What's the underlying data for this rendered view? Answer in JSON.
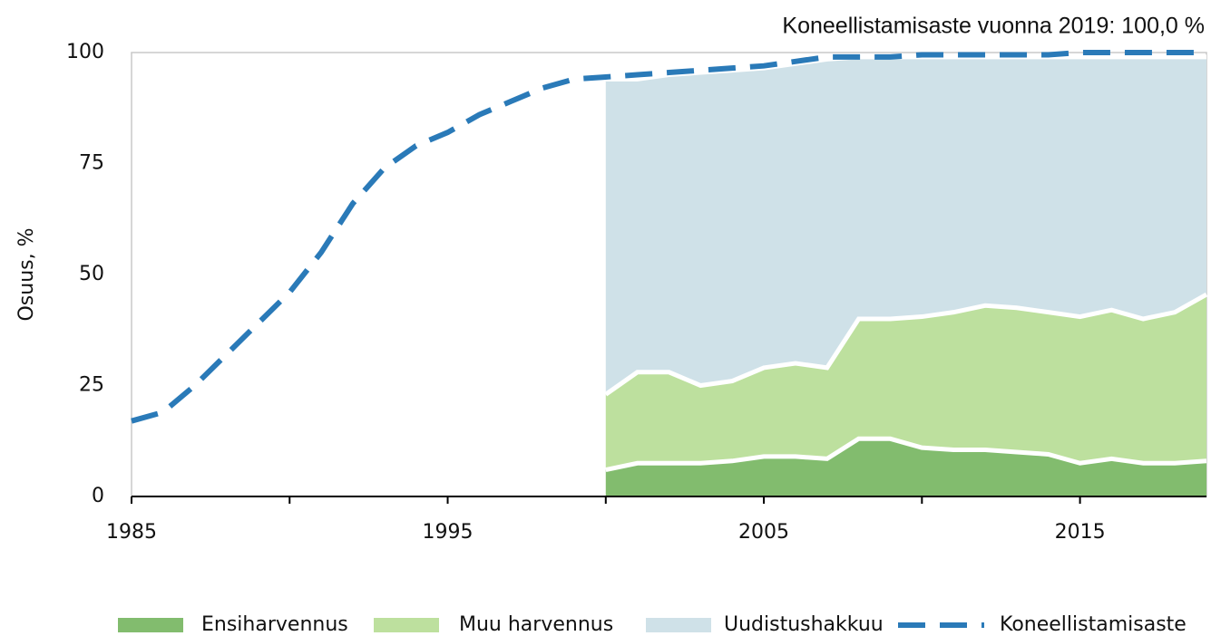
{
  "chart_data": {
    "type": "stacked-area-line",
    "title": "Koneellistamisaste vuonna 2019:  100,0 %",
    "y_label": "Osuus, %",
    "x": [
      1985,
      1986,
      1987,
      1988,
      1989,
      1990,
      1991,
      1992,
      1993,
      1994,
      1995,
      1996,
      1997,
      1998,
      1999,
      2000,
      2001,
      2002,
      2003,
      2004,
      2005,
      2006,
      2007,
      2008,
      2009,
      2010,
      2011,
      2012,
      2013,
      2014,
      2015,
      2016,
      2017,
      2018,
      2019
    ],
    "series": [
      {
        "name": "Ensiharvennus",
        "color": "#82bc6e",
        "kind": "area",
        "values": [
          null,
          null,
          null,
          null,
          null,
          null,
          null,
          null,
          null,
          null,
          null,
          null,
          null,
          null,
          null,
          6,
          7.5,
          7.5,
          7.5,
          8,
          9,
          9,
          8.5,
          13,
          13,
          11,
          10.5,
          10.5,
          10,
          9.5,
          7.5,
          8.5,
          7.5,
          7.5,
          8
        ]
      },
      {
        "name": "Muu harvennus",
        "color": "#bde09e",
        "kind": "area",
        "values": [
          null,
          null,
          null,
          null,
          null,
          null,
          null,
          null,
          null,
          null,
          null,
          null,
          null,
          null,
          null,
          17,
          20.5,
          20.5,
          17.5,
          18,
          20,
          21,
          20.5,
          27,
          27,
          29.5,
          31,
          32.5,
          32.5,
          32,
          33,
          33.5,
          32.5,
          34,
          37.5
        ]
      },
      {
        "name": "Uudistushakkuu",
        "color": "#cfe1e8",
        "kind": "area",
        "values": [
          null,
          null,
          null,
          null,
          null,
          null,
          null,
          null,
          null,
          null,
          null,
          null,
          null,
          null,
          null,
          71,
          66,
          67,
          70.5,
          70,
          67.5,
          67.5,
          69.5,
          59,
          59,
          58.5,
          57.5,
          56,
          56.5,
          57.5,
          58.5,
          57,
          59,
          57.5,
          53.5
        ]
      },
      {
        "name": "Koneellistamisaste",
        "color": "#2a7ab8",
        "kind": "line",
        "dashed": true,
        "values": [
          17,
          19,
          25,
          32,
          39,
          46,
          55,
          66,
          74,
          79,
          82,
          86,
          89,
          92,
          94,
          94.5,
          95,
          95.5,
          96,
          96.5,
          97,
          98,
          99,
          99,
          99,
          99.5,
          99.5,
          99.5,
          99.5,
          99.5,
          100,
          100,
          100,
          100,
          100
        ]
      }
    ],
    "xlim": [
      1985,
      2019
    ],
    "xticks": [
      1985,
      1995,
      2005,
      2015
    ],
    "xminorticks": [
      1990,
      2000,
      2010
    ],
    "ylim": [
      0,
      100
    ],
    "yticks": [
      0,
      25,
      50,
      75,
      100
    ]
  }
}
